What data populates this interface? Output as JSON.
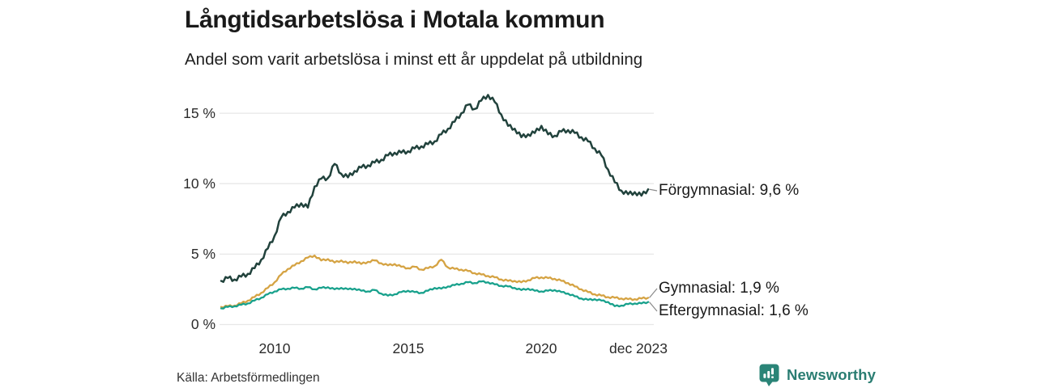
{
  "header": {
    "title": "Långtidsarbetslösa i Motala kommun",
    "subtitle": "Andel som varit arbetslösa i minst ett år uppdelat på utbildning"
  },
  "footer": {
    "source": "Källa: Arbetsförmedlingen",
    "logo_text": "Newsworthy"
  },
  "colors": {
    "logo": "#2a7d72",
    "grid": "#e7e7e7",
    "connector": "#8a8a8a",
    "text": "#1a1a1a"
  },
  "chart_data": {
    "type": "line",
    "title": "Långtidsarbetslösa i Motala kommun",
    "subtitle": "Andel som varit arbetslösa i minst ett år uppdelat på utbildning",
    "unit": "%",
    "x_start": 2008,
    "x_step": 0.25,
    "xlim": [
      2008,
      2024
    ],
    "ylim": [
      0,
      16.8
    ],
    "grid": "horizontal-only",
    "legend_position": "right-end-labels",
    "xticks": [
      {
        "value": 2010,
        "label": "2010"
      },
      {
        "value": 2015,
        "label": "2015"
      },
      {
        "value": 2020,
        "label": "2020"
      },
      {
        "value": 2023.92,
        "label": "dec 2023"
      }
    ],
    "yticks": [
      {
        "value": 0,
        "label": "0 %"
      },
      {
        "value": 5,
        "label": "5 %"
      },
      {
        "value": 10,
        "label": "10 %"
      },
      {
        "value": 15,
        "label": "15 %"
      }
    ],
    "series": [
      {
        "name": "Förgymnasial",
        "label": "Förgymnasial: 9,6 %",
        "end_value": 9.6,
        "color": "#21423c",
        "values": [
          3.1,
          3.3,
          3.2,
          3.4,
          3.6,
          4.0,
          4.6,
          5.4,
          6.3,
          7.6,
          8.0,
          8.3,
          8.6,
          8.3,
          9.8,
          10.35,
          10.4,
          11.4,
          10.7,
          10.45,
          10.9,
          11.15,
          11.3,
          11.5,
          11.7,
          12.0,
          12.2,
          12.2,
          12.3,
          12.5,
          12.65,
          12.8,
          13.0,
          13.5,
          13.9,
          14.4,
          15.0,
          15.6,
          15.3,
          15.9,
          16.3,
          15.8,
          14.9,
          14.1,
          13.9,
          13.3,
          13.5,
          13.6,
          14.1,
          13.5,
          13.4,
          13.7,
          13.8,
          13.6,
          13.3,
          13.0,
          12.5,
          12.0,
          11.0,
          10.1,
          9.5,
          9.25,
          9.4,
          9.15,
          9.6
        ]
      },
      {
        "name": "Gymnasial",
        "label": "Gymnasial: 1,9 %",
        "end_value": 1.9,
        "color": "#d5a343",
        "values": [
          1.25,
          1.3,
          1.35,
          1.5,
          1.7,
          1.95,
          2.25,
          2.6,
          3.0,
          3.55,
          3.95,
          4.2,
          4.5,
          4.75,
          4.9,
          4.55,
          4.65,
          4.4,
          4.55,
          4.35,
          4.5,
          4.3,
          4.45,
          4.55,
          4.35,
          4.2,
          4.3,
          4.1,
          4.0,
          4.1,
          3.9,
          4.0,
          4.15,
          4.6,
          4.05,
          3.95,
          3.9,
          3.8,
          3.65,
          3.55,
          3.45,
          3.35,
          3.2,
          3.1,
          3.1,
          3.0,
          3.15,
          3.3,
          3.35,
          3.3,
          3.25,
          3.1,
          2.95,
          2.7,
          2.5,
          2.3,
          2.15,
          2.05,
          1.95,
          1.9,
          1.85,
          1.8,
          1.8,
          1.85,
          1.9
        ]
      },
      {
        "name": "Eftergymnasial",
        "label": "Eftergymnasial: 1,6 %",
        "end_value": 1.6,
        "color": "#18a18c",
        "values": [
          1.15,
          1.25,
          1.3,
          1.4,
          1.5,
          1.7,
          1.9,
          2.15,
          2.35,
          2.5,
          2.55,
          2.6,
          2.55,
          2.65,
          2.5,
          2.6,
          2.65,
          2.5,
          2.6,
          2.5,
          2.55,
          2.4,
          2.35,
          2.45,
          2.2,
          2.05,
          2.15,
          2.3,
          2.4,
          2.3,
          2.25,
          2.4,
          2.6,
          2.55,
          2.7,
          2.8,
          2.9,
          3.0,
          2.95,
          3.05,
          3.0,
          2.85,
          2.75,
          2.7,
          2.6,
          2.45,
          2.55,
          2.4,
          2.35,
          2.4,
          2.45,
          2.3,
          2.2,
          2.0,
          1.85,
          1.75,
          1.8,
          1.7,
          1.6,
          1.3,
          1.35,
          1.45,
          1.5,
          1.5,
          1.6
        ]
      }
    ]
  }
}
